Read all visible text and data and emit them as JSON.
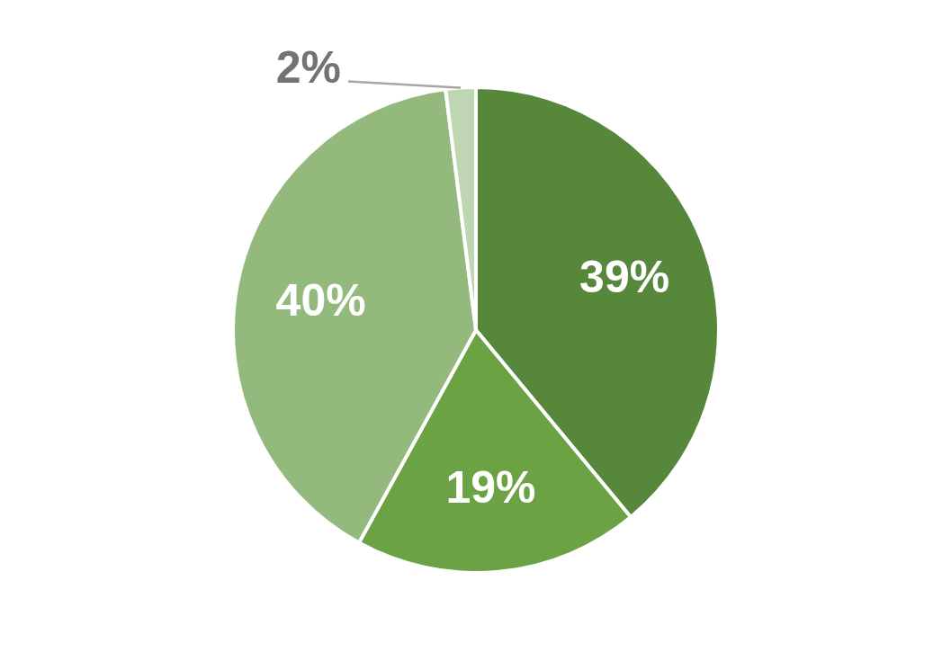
{
  "chart_data": {
    "type": "pie",
    "categories": [
      null,
      null,
      null,
      null
    ],
    "values": [
      39,
      19,
      40,
      2
    ],
    "colors": [
      "#56873a",
      "#6aa244",
      "#93ba7c",
      "#bfd6b3"
    ],
    "value_labels": [
      "39%",
      "19%",
      "40%",
      "2%"
    ]
  }
}
